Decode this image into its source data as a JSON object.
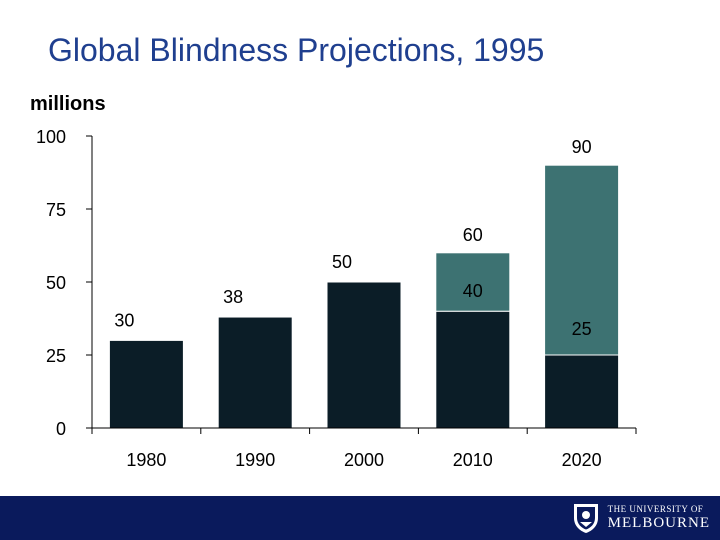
{
  "title": "Global Blindness Projections, 1995",
  "unit_label": "millions",
  "colors": {
    "base": "#0b1d27",
    "projected": "#3d7272",
    "title": "#1f3f8f",
    "footer": "#0a1a5c"
  },
  "footer": {
    "line1": "THE UNIVERSITY OF",
    "line2": "MELBOURNE",
    "crest_icon": "university-crest-icon"
  },
  "chart_data": {
    "type": "bar",
    "stacked": true,
    "categories": [
      "1980",
      "1990",
      "2000",
      "2010",
      "2020"
    ],
    "series": [
      {
        "values": [
          30,
          38,
          50,
          40,
          25
        ],
        "color": "#0b1d27"
      },
      {
        "values": [
          0,
          0,
          0,
          20,
          65
        ],
        "color": "#3d7272"
      }
    ],
    "segment_labels": [
      {
        "category": "1980",
        "text": "30"
      },
      {
        "category": "1990",
        "text": "38"
      },
      {
        "category": "2000",
        "text": "50"
      },
      {
        "category": "2010",
        "text": "40"
      },
      {
        "category": "2010",
        "text": "60"
      },
      {
        "category": "2020",
        "text": "25"
      },
      {
        "category": "2020",
        "text": "90"
      }
    ],
    "yticks": [
      0,
      25,
      50,
      75,
      100
    ],
    "ylim": [
      0,
      100
    ],
    "title": "Global Blindness Projections, 1995",
    "xlabel": "",
    "ylabel": "millions"
  }
}
